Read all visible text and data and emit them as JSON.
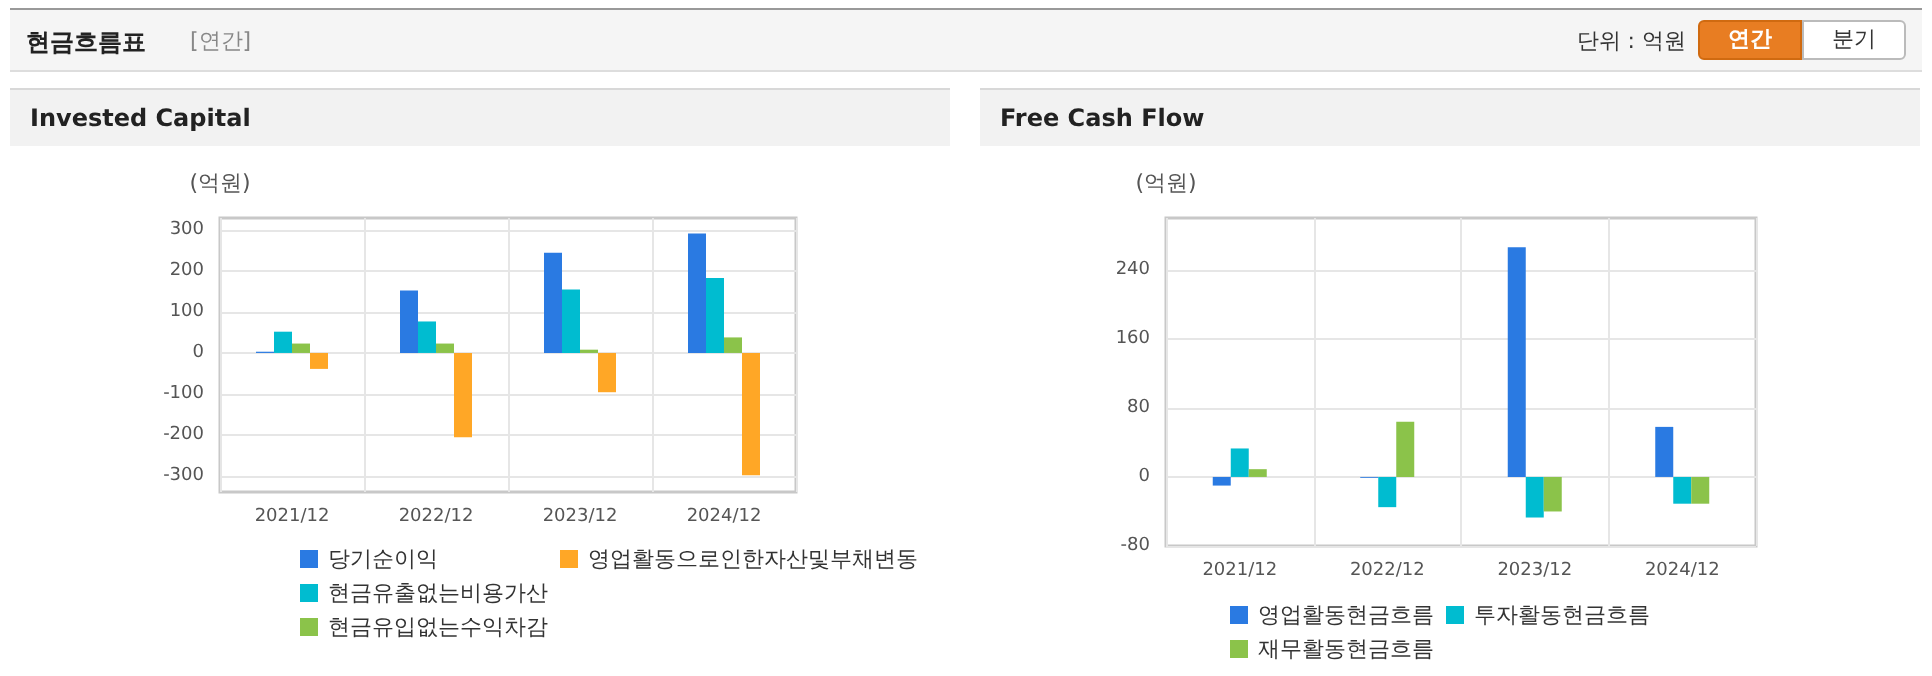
{
  "chart_data": [
    {
      "type": "other",
      "title": "현금흐름표",
      "annotations": [
        "[연간]",
        "단위 : 억원",
        "연간",
        "분기"
      ]
    },
    {
      "type": "bar",
      "title": "Invested Capital",
      "ylabel": "(억원)",
      "categories": [
        "2021/12",
        "2022/12",
        "2023/12",
        "2024/12"
      ],
      "series": [
        {
          "name": "당기순이익",
          "color": "#2a7ae2",
          "values": [
            3,
            153,
            245,
            292
          ]
        },
        {
          "name": "현금유출없는비용가산",
          "color": "#00bcd0",
          "values": [
            52,
            77,
            155,
            183
          ]
        },
        {
          "name": "현금유입없는수익차감",
          "color": "#8bc34a",
          "values": [
            23,
            23,
            8,
            38
          ]
        },
        {
          "name": "영업활동으로인한자산및부채변동",
          "color": "#ffa726",
          "values": [
            -39,
            -206,
            -96,
            -299
          ]
        }
      ],
      "ylim": [
        -340,
        330
      ],
      "yticks": [
        -300,
        -200,
        -100,
        0,
        100,
        200,
        300
      ],
      "grid": true,
      "legend": "bottom"
    },
    {
      "type": "bar",
      "title": "Free Cash Flow",
      "ylabel": "(억원)",
      "categories": [
        "2021/12",
        "2022/12",
        "2023/12",
        "2024/12"
      ],
      "series": [
        {
          "name": "영업활동현금흐름",
          "color": "#2a7ae2",
          "values": [
            -10,
            -1,
            266,
            58
          ]
        },
        {
          "name": "투자활동현금흐름",
          "color": "#00bcd0",
          "values": [
            33,
            -35,
            -47,
            -31
          ]
        },
        {
          "name": "재무활동현금흐름",
          "color": "#8bc34a",
          "values": [
            9,
            64,
            -40,
            -31
          ]
        }
      ],
      "ylim": [
        -80,
        300
      ],
      "yticks": [
        -80,
        0,
        80,
        160,
        240
      ],
      "grid": true,
      "legend": "bottom"
    }
  ]
}
